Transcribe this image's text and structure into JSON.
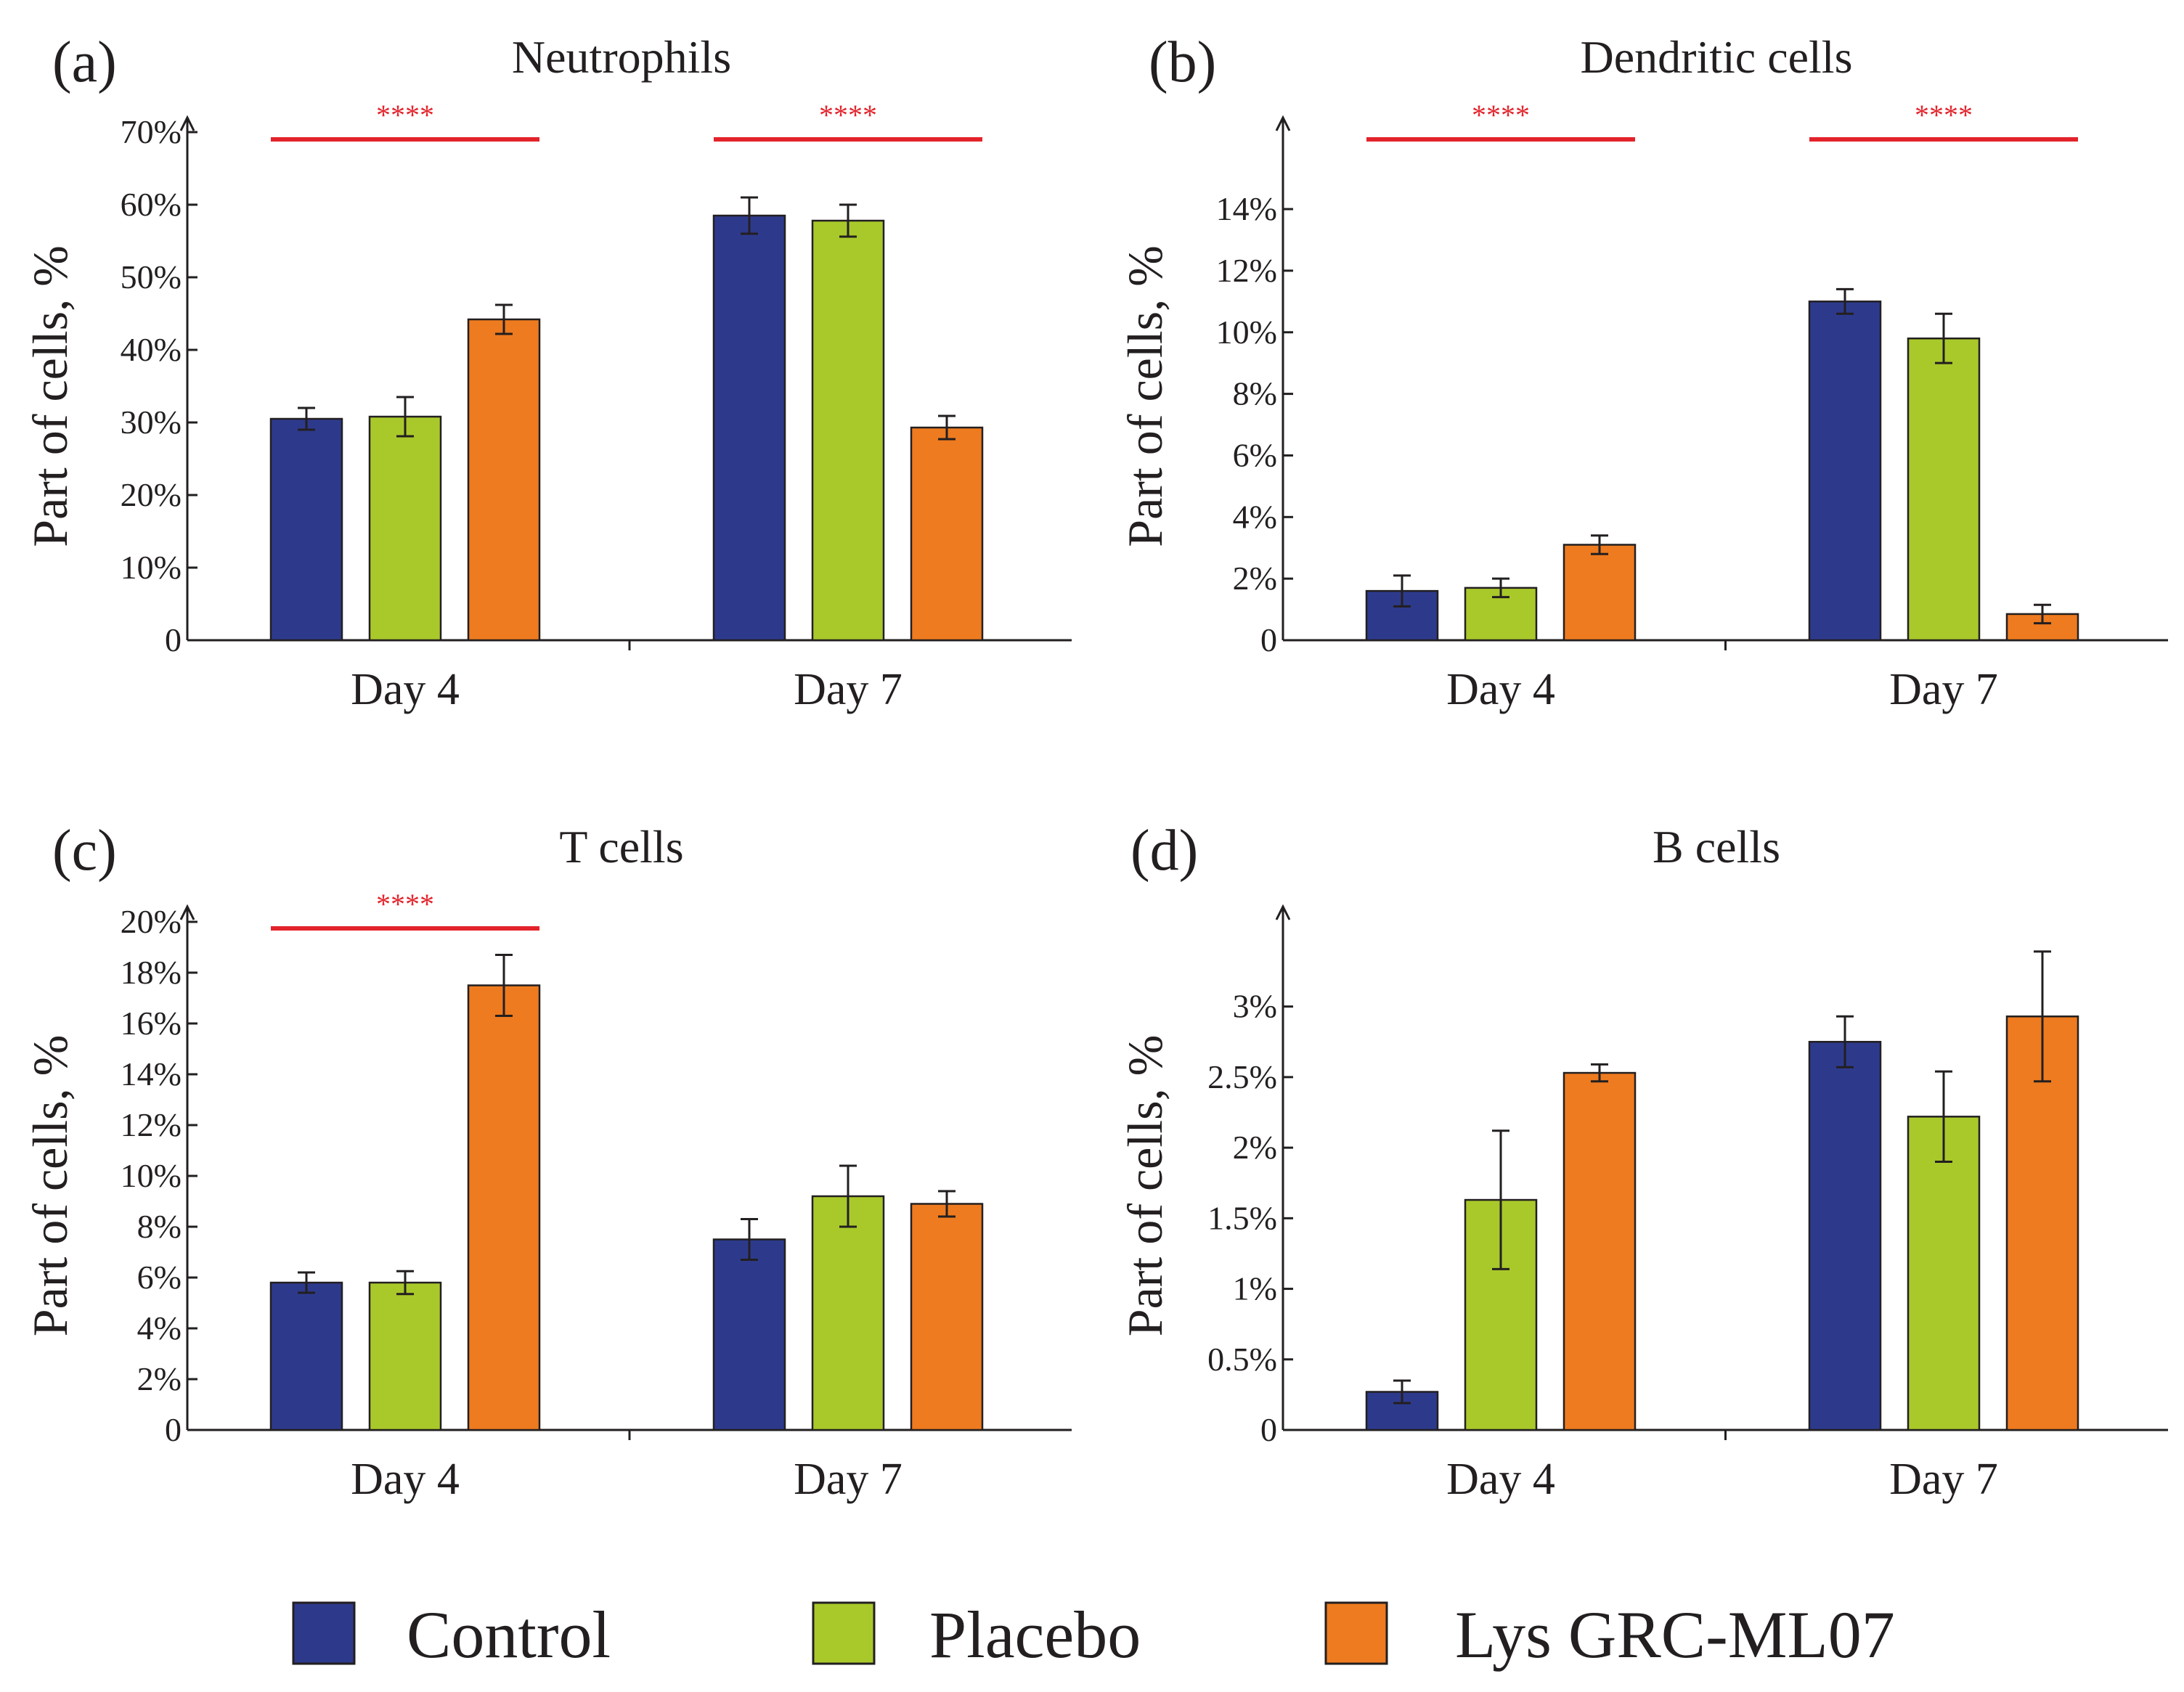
{
  "colors": {
    "Control": "#2d3a8c",
    "Placebo": "#a9c92b",
    "Lys GRC-ML07": "#ee7b1f",
    "significance": "#e3232b",
    "ink": "#231f20"
  },
  "legend": [
    "Control",
    "Placebo",
    "Lys GRC-ML07"
  ],
  "chart_data": [
    {
      "panel": "(a)",
      "title": "Neutrophils",
      "type": "bar",
      "ylabel": "Part of cells, %",
      "ylim": [
        0,
        70
      ],
      "yticks": [
        0,
        10,
        20,
        30,
        40,
        50,
        60,
        70
      ],
      "ytick_labels": [
        "0",
        "10%",
        "20%",
        "30%",
        "40%",
        "50%",
        "60%",
        "70%"
      ],
      "categories": [
        "Day 4",
        "Day 7"
      ],
      "series": [
        {
          "name": "Control",
          "values": [
            30.5,
            58.5
          ],
          "errors": [
            1.5,
            2.5
          ]
        },
        {
          "name": "Placebo",
          "values": [
            30.8,
            57.8
          ],
          "errors": [
            2.7,
            2.2
          ]
        },
        {
          "name": "Lys GRC-ML07",
          "values": [
            44.2,
            29.3
          ],
          "errors": [
            2.0,
            1.6
          ]
        }
      ],
      "significance": [
        {
          "category": "Day 4",
          "label": "****"
        },
        {
          "category": "Day 7",
          "label": "****"
        }
      ]
    },
    {
      "panel": "(b)",
      "title": "Dendritic cells",
      "type": "bar",
      "ylabel": "Part of cells, %",
      "ylim": [
        0,
        16.5
      ],
      "yticks": [
        0,
        2,
        4,
        6,
        8,
        10,
        12,
        14
      ],
      "ytick_labels": [
        "0",
        "2%",
        "4%",
        "6%",
        "8%",
        "10%",
        "12%",
        "14%"
      ],
      "categories": [
        "Day 4",
        "Day 7"
      ],
      "series": [
        {
          "name": "Control",
          "values": [
            1.6,
            11.0
          ],
          "errors": [
            0.5,
            0.4
          ]
        },
        {
          "name": "Placebo",
          "values": [
            1.7,
            9.8
          ],
          "errors": [
            0.3,
            0.8
          ]
        },
        {
          "name": "Lys GRC-ML07",
          "values": [
            3.1,
            0.85
          ],
          "errors": [
            0.3,
            0.3
          ]
        }
      ],
      "significance": [
        {
          "category": "Day 4",
          "label": "****"
        },
        {
          "category": "Day 7",
          "label": "****"
        }
      ]
    },
    {
      "panel": "(c)",
      "title": "T cells",
      "type": "bar",
      "ylabel": "Part of cells, %",
      "ylim": [
        0,
        20
      ],
      "yticks": [
        0,
        2,
        4,
        6,
        8,
        10,
        12,
        14,
        16,
        18,
        20
      ],
      "ytick_labels": [
        "0",
        "2%",
        "4%",
        "6%",
        "8%",
        "10%",
        "12%",
        "14%",
        "16%",
        "18%",
        "20%"
      ],
      "categories": [
        "Day 4",
        "Day 7"
      ],
      "series": [
        {
          "name": "Control",
          "values": [
            5.8,
            7.5
          ],
          "errors": [
            0.4,
            0.8
          ]
        },
        {
          "name": "Placebo",
          "values": [
            5.8,
            9.2
          ],
          "errors": [
            0.45,
            1.2
          ]
        },
        {
          "name": "Lys GRC-ML07",
          "values": [
            17.5,
            8.9
          ],
          "errors": [
            1.2,
            0.5
          ]
        }
      ],
      "significance": [
        {
          "category": "Day 4",
          "label": "****"
        }
      ]
    },
    {
      "panel": "(d)",
      "title": "B cells",
      "type": "bar",
      "ylabel": "Part of cells, %",
      "ylim": [
        0,
        3.6
      ],
      "yticks": [
        0,
        0.5,
        1,
        1.5,
        2,
        2.5,
        3
      ],
      "ytick_labels": [
        "0",
        "0.5%",
        "1%",
        "1.5%",
        "2%",
        "2.5%",
        "3%"
      ],
      "categories": [
        "Day 4",
        "Day 7"
      ],
      "series": [
        {
          "name": "Control",
          "values": [
            0.27,
            2.75
          ],
          "errors": [
            0.08,
            0.18
          ]
        },
        {
          "name": "Placebo",
          "values": [
            1.63,
            2.22
          ],
          "errors": [
            0.49,
            0.32
          ]
        },
        {
          "name": "Lys GRC-ML07",
          "values": [
            2.53,
            2.93
          ],
          "errors": [
            0.06,
            0.46
          ]
        }
      ],
      "significance": []
    }
  ]
}
